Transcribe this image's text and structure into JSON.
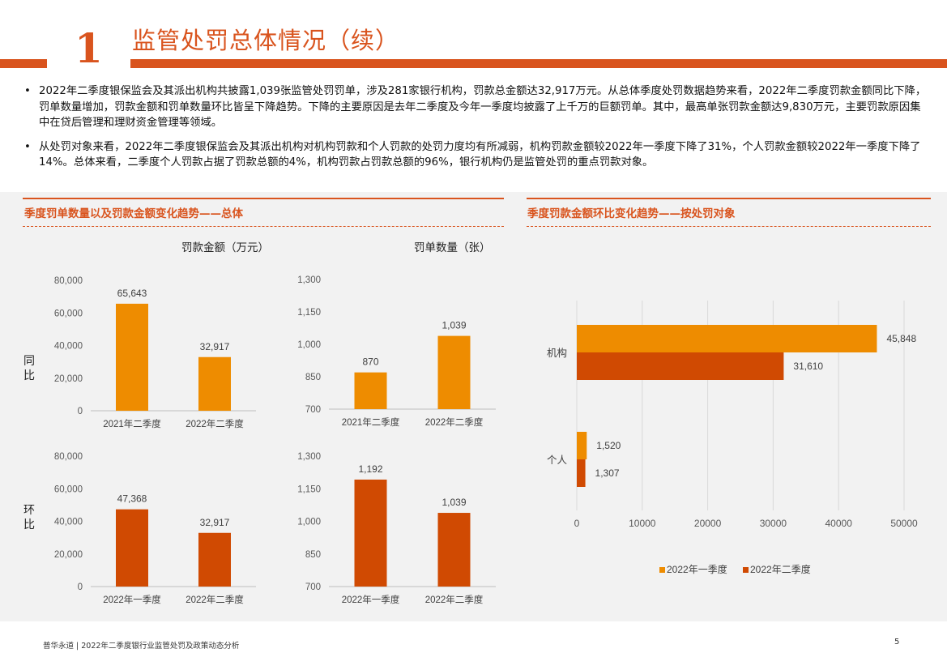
{
  "header": {
    "number": "1",
    "title": "监管处罚总体情况（续）"
  },
  "bullets": [
    "2022年二季度银保监会及其派出机构共披露1,039张监管处罚罚单，涉及281家银行机构，罚款总金额达32,917万元。从总体季度处罚数据趋势来看，2022年二季度罚款金额同比下降，罚单数量增加，罚款金额和罚单数量环比皆呈下降趋势。下降的主要原因是去年二季度及今年一季度均披露了上千万的巨额罚单。其中，最高单张罚款金额达9,830万元，主要罚款原因集中在贷后管理和理财资金管理等领域。",
    "从处罚对象来看，2022年二季度银保监会及其派出机构对机构罚款和个人罚款的处罚力度均有所减弱，机构罚款金额较2022年一季度下降了31%，个人罚款金额较2022年一季度下降了14%。总体来看，二季度个人罚款占据了罚款总额的4%，机构罚款占罚款总额的96%，银行机构仍是监管处罚的重点罚款对象。"
  ],
  "left_section": {
    "title": "季度罚单数量以及罚款金额变化趋势——总体",
    "col_heads": [
      "罚款金额（万元）",
      "罚单数量（张）"
    ],
    "row_labels": [
      "同比",
      "环比"
    ]
  },
  "right_section": {
    "title": "季度罚款金额环比变化趋势——按处罚对象"
  },
  "footer": {
    "text": "普华永道 | 2022年二季度银行业监管处罚及政策动态分析",
    "page": "5"
  },
  "chart_data": [
    {
      "type": "bar",
      "title": "",
      "ylabel": "罚款金额（万元）",
      "row": "同比",
      "categories": [
        "2021年二季度",
        "2022年二季度"
      ],
      "values": [
        65643,
        32917
      ],
      "labels": [
        "65,643",
        "32,917"
      ],
      "ylim": [
        0,
        80000
      ],
      "ticks": [
        0,
        20000,
        40000,
        60000,
        80000
      ],
      "tick_labels": [
        "0",
        "20,000",
        "40,000",
        "60,000",
        "80,000"
      ],
      "color": "#ee8c00"
    },
    {
      "type": "bar",
      "title": "",
      "ylabel": "罚单数量（张）",
      "row": "同比",
      "categories": [
        "2021年二季度",
        "2022年二季度"
      ],
      "values": [
        870,
        1039
      ],
      "labels": [
        "870",
        "1,039"
      ],
      "ylim": [
        700,
        1300
      ],
      "ticks": [
        700,
        850,
        1000,
        1150,
        1300
      ],
      "tick_labels": [
        "700",
        "850",
        "1,000",
        "1,150",
        "1,300"
      ],
      "color": "#ee8c00"
    },
    {
      "type": "bar",
      "title": "",
      "ylabel": "罚款金额（万元）",
      "row": "环比",
      "categories": [
        "2022年一季度",
        "2022年二季度"
      ],
      "values": [
        47368,
        32917
      ],
      "labels": [
        "47,368",
        "32,917"
      ],
      "ylim": [
        0,
        80000
      ],
      "ticks": [
        0,
        20000,
        40000,
        60000,
        80000
      ],
      "tick_labels": [
        "0",
        "20,000",
        "40,000",
        "60,000",
        "80,000"
      ],
      "color": "#d04a02"
    },
    {
      "type": "bar",
      "title": "",
      "ylabel": "罚单数量（张）",
      "row": "环比",
      "categories": [
        "2022年一季度",
        "2022年二季度"
      ],
      "values": [
        1192,
        1039
      ],
      "labels": [
        "1,192",
        "1,039"
      ],
      "ylim": [
        700,
        1300
      ],
      "ticks": [
        700,
        850,
        1000,
        1150,
        1300
      ],
      "tick_labels": [
        "700",
        "850",
        "1,000",
        "1,150",
        "1,300"
      ],
      "color": "#d04a02"
    },
    {
      "type": "bar",
      "orientation": "horizontal",
      "title": "",
      "categories": [
        "机构",
        "个人"
      ],
      "series": [
        {
          "name": "2022年一季度",
          "values": [
            45848,
            1520
          ],
          "labels": [
            "45,848",
            "1,520"
          ],
          "color": "#ee8c00"
        },
        {
          "name": "2022年二季度",
          "values": [
            31610,
            1307
          ],
          "labels": [
            "31,610",
            "1,307"
          ],
          "color": "#d04a02"
        }
      ],
      "xlim": [
        0,
        50000
      ],
      "ticks": [
        0,
        10000,
        20000,
        30000,
        40000,
        50000
      ],
      "tick_labels": [
        "0",
        "10000",
        "20000",
        "30000",
        "40000",
        "50000"
      ],
      "legend": "bottom",
      "grid": true
    }
  ]
}
